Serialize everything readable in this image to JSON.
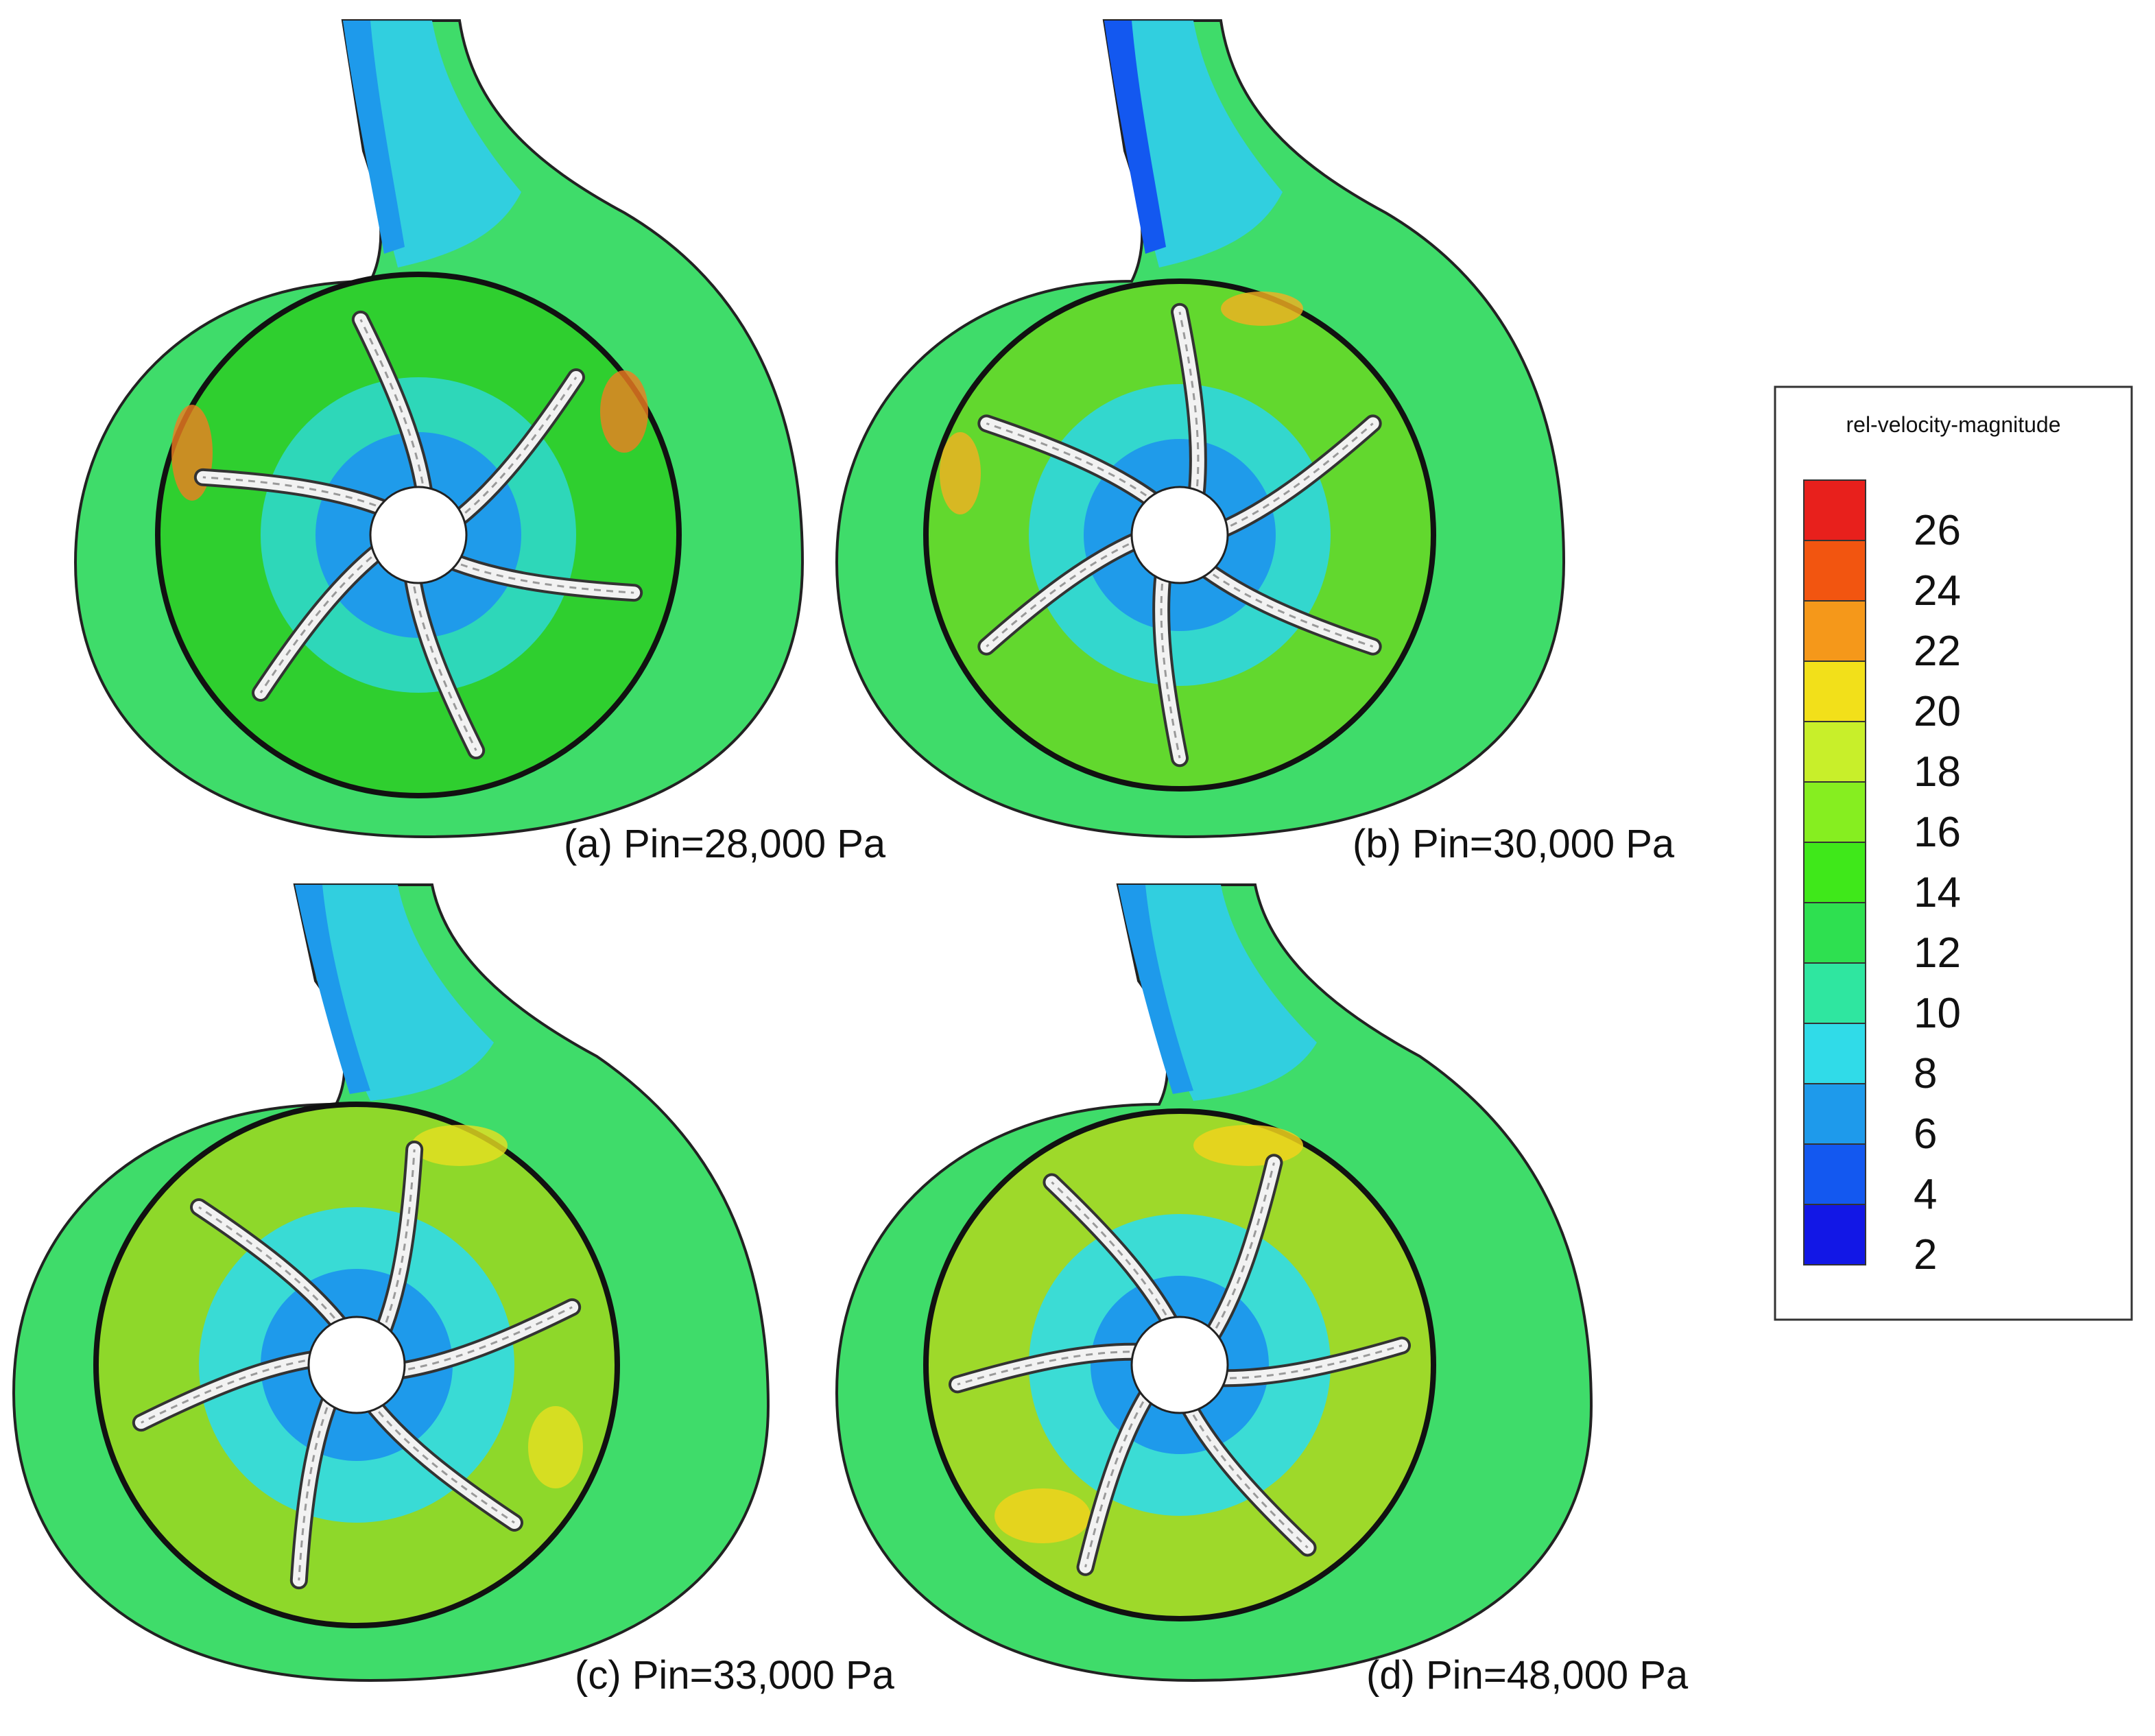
{
  "panels": [
    {
      "id": "a",
      "caption": "(a) Pin=28,000 Pa",
      "impeller_color": "#2fcf2f",
      "hot_spot_color": "#f07d20",
      "ring_color": "#3fdc4a"
    },
    {
      "id": "b",
      "caption": "(b) Pin=30,000 Pa",
      "impeller_color": "#62d82e",
      "hot_spot_color": "#f5b020",
      "ring_color": "#3fdc4a"
    },
    {
      "id": "c",
      "caption": "(c) Pin=33,000 Pa",
      "impeller_color": "#8ed82a",
      "hot_spot_color": "#e8e020",
      "ring_color": "#3fdc4a"
    },
    {
      "id": "d",
      "caption": "(d) Pin=48,000 Pa",
      "impeller_color": "#9ed92a",
      "hot_spot_color": "#f0d21c",
      "ring_color": "#3fdc4a"
    }
  ],
  "legend": {
    "title": "rel-velocity-magnitude",
    "ticks": [
      "26",
      "24",
      "22",
      "20",
      "18",
      "16",
      "14",
      "12",
      "10",
      "8",
      "6",
      "4",
      "2"
    ],
    "colors": [
      "#e8201c",
      "#f25510",
      "#f5981a",
      "#f2e01a",
      "#c8ef2a",
      "#86ee20",
      "#3fe81a",
      "#2ee050",
      "#2fe6a0",
      "#30dbe8",
      "#1e9aeb",
      "#1358f0",
      "#1217e6"
    ]
  }
}
